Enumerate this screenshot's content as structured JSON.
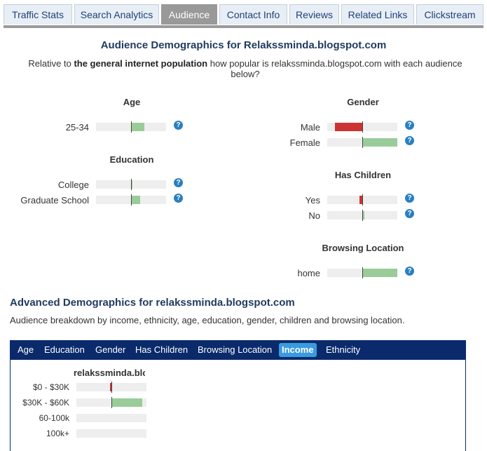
{
  "tabs": [
    {
      "label": "Traffic Stats",
      "active": false
    },
    {
      "label": "Search Analytics",
      "active": false
    },
    {
      "label": "Audience",
      "active": true
    },
    {
      "label": "Contact Info",
      "active": false
    },
    {
      "label": "Reviews",
      "active": false
    },
    {
      "label": "Related Links",
      "active": false
    },
    {
      "label": "Clickstream",
      "active": false
    }
  ],
  "header": {
    "title": "Audience Demographics for Relakssminda.blogspot.com",
    "subtitle_pre": "Relative to ",
    "subtitle_bold": "the general internet population",
    "subtitle_post": " how popular is relakssminda.blogspot.com with each audience below?"
  },
  "sections": {
    "age": {
      "title": "Age",
      "rows": [
        {
          "label": "25-34",
          "value": 0.38
        }
      ]
    },
    "education": {
      "title": "Education",
      "rows": [
        {
          "label": "College",
          "value": 0.04
        },
        {
          "label": "Graduate School",
          "value": 0.26
        }
      ]
    },
    "gender": {
      "title": "Gender",
      "rows": [
        {
          "label": "Male",
          "value": -0.78
        },
        {
          "label": "Female",
          "value": 1.0
        }
      ]
    },
    "children": {
      "title": "Has Children",
      "rows": [
        {
          "label": "Yes",
          "value": -0.08
        },
        {
          "label": "No",
          "value": 0.06
        }
      ]
    },
    "location": {
      "title": "Browsing Location",
      "rows": [
        {
          "label": "home",
          "value": 1.0
        }
      ]
    }
  },
  "help_glyph": "?",
  "advanced": {
    "title": "Advanced Demographics for relakssminda.blogspot.com",
    "subtitle": "Audience breakdown by income, ethnicity, age, education, gender, children and browsing location.",
    "tabs": [
      {
        "label": "Age",
        "active": false
      },
      {
        "label": "Education",
        "active": false
      },
      {
        "label": "Gender",
        "active": false
      },
      {
        "label": "Has Children",
        "active": false
      },
      {
        "label": "Browsing Location",
        "active": false
      },
      {
        "label": "Income",
        "active": true
      },
      {
        "label": "Ethnicity",
        "active": false
      }
    ],
    "column_header": "relakssminda.blogspot.com",
    "income_rows": [
      {
        "label": "$0 - $30K",
        "value": -0.02
      },
      {
        "label": "$30K - $60K",
        "value": 0.88
      },
      {
        "label": "60-100k",
        "value": null
      },
      {
        "label": "100k+",
        "value": null
      }
    ]
  },
  "colors": {
    "positive": "#99cc99",
    "negative": "#cc3333",
    "nav": "#0a2a6b",
    "active_tab": "#3a9be0"
  }
}
